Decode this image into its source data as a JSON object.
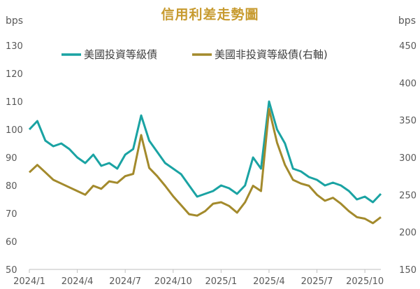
{
  "chart_data": {
    "type": "line",
    "title": "信用利差走勢圖",
    "y_unit_left": "bps",
    "y_unit_right": "bps",
    "x_tick_labels": [
      "2024/1",
      "2024/4",
      "2024/7",
      "2024/10",
      "2025/1",
      "2025/4",
      "2025/7",
      "2025/10"
    ],
    "ylim_left": [
      50,
      130
    ],
    "yticks_left": [
      "50",
      "60",
      "70",
      "80",
      "90",
      "100",
      "110",
      "120",
      "130"
    ],
    "ylim_right": [
      150,
      450
    ],
    "yticks_right": [
      "150",
      "200",
      "250",
      "300",
      "350",
      "400",
      "450"
    ],
    "legend_position": "top",
    "series": [
      {
        "name": "美國投資等級債",
        "axis": "left",
        "color": "#1aa3a3",
        "x": [
          "2024/1",
          "2024/1",
          "2024/2",
          "2024/2",
          "2024/3",
          "2024/3",
          "2024/4",
          "2024/4",
          "2024/5",
          "2024/5",
          "2024/6",
          "2024/6",
          "2024/7",
          "2024/7",
          "2024/8",
          "2024/8",
          "2024/9",
          "2024/9",
          "2024/10",
          "2024/10",
          "2024/11",
          "2024/11",
          "2024/12",
          "2024/12",
          "2025/1",
          "2025/1",
          "2025/2",
          "2025/2",
          "2025/3",
          "2025/3",
          "2025/4",
          "2025/4",
          "2025/5",
          "2025/5",
          "2025/6",
          "2025/6",
          "2025/7",
          "2025/7",
          "2025/8",
          "2025/8",
          "2025/9",
          "2025/9",
          "2025/10",
          "2025/10",
          "2025/11"
        ],
        "values": [
          100,
          103,
          96,
          94,
          95,
          93,
          90,
          88,
          91,
          87,
          88,
          86,
          91,
          93,
          105,
          96,
          92,
          88,
          86,
          84,
          80,
          76,
          77,
          78,
          80,
          79,
          77,
          80,
          90,
          86,
          110,
          100,
          95,
          86,
          85,
          83,
          82,
          80,
          81,
          80,
          78,
          75,
          76,
          74,
          77
        ]
      },
      {
        "name": "美國非投資等級債(右軸)",
        "axis": "right",
        "color": "#a38a2c",
        "x": [
          "2024/1",
          "2024/1",
          "2024/2",
          "2024/2",
          "2024/3",
          "2024/3",
          "2024/4",
          "2024/4",
          "2024/5",
          "2024/5",
          "2024/6",
          "2024/6",
          "2024/7",
          "2024/7",
          "2024/8",
          "2024/8",
          "2024/9",
          "2024/9",
          "2024/10",
          "2024/10",
          "2024/11",
          "2024/11",
          "2024/12",
          "2024/12",
          "2025/1",
          "2025/1",
          "2025/2",
          "2025/2",
          "2025/3",
          "2025/3",
          "2025/4",
          "2025/4",
          "2025/5",
          "2025/5",
          "2025/6",
          "2025/6",
          "2025/7",
          "2025/7",
          "2025/8",
          "2025/8",
          "2025/9",
          "2025/9",
          "2025/10",
          "2025/10",
          "2025/11"
        ],
        "values": [
          280,
          290,
          280,
          270,
          265,
          260,
          255,
          250,
          262,
          258,
          268,
          266,
          275,
          278,
          330,
          286,
          275,
          262,
          248,
          236,
          224,
          222,
          228,
          238,
          240,
          235,
          226,
          240,
          262,
          255,
          365,
          320,
          290,
          270,
          265,
          262,
          250,
          242,
          246,
          238,
          228,
          220,
          218,
          212,
          220
        ]
      }
    ]
  }
}
